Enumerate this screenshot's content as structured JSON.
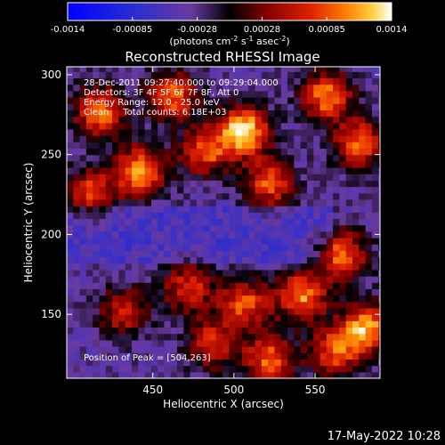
{
  "chart_data": {
    "type": "heatmap",
    "title": "Reconstructed RHESSI Image",
    "xlabel": "Heliocentric X (arcsec)",
    "ylabel": "Heliocentric Y (arcsec)",
    "xlim": [
      397,
      590
    ],
    "ylim": [
      110,
      305
    ],
    "x_ticks": [
      450,
      500,
      550
    ],
    "y_ticks": [
      150,
      200,
      250,
      300
    ],
    "colorbar": {
      "min": -0.0014,
      "max": 0.0014,
      "ticks": [
        "-0.0014",
        "-0.00085",
        "-0.00028",
        "0.00028",
        "0.00085",
        "0.0014"
      ],
      "unit_label_main": "(photons cm",
      "unit_sup1": "-2",
      "unit_mid": " s",
      "unit_sup2": "-1",
      "unit_mid2": " asec",
      "unit_sup3": "-2",
      "unit_end": ")"
    },
    "annotations": [
      "28-Dec-2011 09:27:40.000 to 09:29:04.000",
      "Detectors: 3F 4F 5F 6F 7F 8F, Att 0",
      "Energy Range: 12.0 - 25.0 keV",
      "Clean     Total counts: 6.18E+03"
    ],
    "peak_label": "Position of Peak = [504,263]",
    "peak": {
      "x": 504,
      "y": 263
    },
    "hotspots": [
      {
        "x": 504,
        "y": 263,
        "value": 0.0014
      },
      {
        "x": 440,
        "y": 238,
        "value": 0.0011
      },
      {
        "x": 415,
        "y": 275,
        "value": 0.001
      },
      {
        "x": 460,
        "y": 285,
        "value": 0.0009
      },
      {
        "x": 555,
        "y": 285,
        "value": 0.001
      },
      {
        "x": 575,
        "y": 255,
        "value": 0.0009
      },
      {
        "x": 520,
        "y": 230,
        "value": 0.0008
      },
      {
        "x": 565,
        "y": 185,
        "value": 0.0009
      },
      {
        "x": 540,
        "y": 160,
        "value": 0.001
      },
      {
        "x": 580,
        "y": 140,
        "value": 0.0011
      },
      {
        "x": 505,
        "y": 155,
        "value": 0.0008
      },
      {
        "x": 470,
        "y": 165,
        "value": 0.0007
      },
      {
        "x": 430,
        "y": 150,
        "value": 0.0006
      },
      {
        "x": 485,
        "y": 130,
        "value": 0.0007
      },
      {
        "x": 520,
        "y": 120,
        "value": 0.0009
      },
      {
        "x": 560,
        "y": 125,
        "value": 0.0008
      },
      {
        "x": 410,
        "y": 225,
        "value": 0.0007
      },
      {
        "x": 480,
        "y": 250,
        "value": 0.0008
      }
    ],
    "colors": {
      "low": "#0000ff",
      "mid": "#000000",
      "high": "#ffffff"
    }
  },
  "timestamp": "17-May-2022 10:28"
}
